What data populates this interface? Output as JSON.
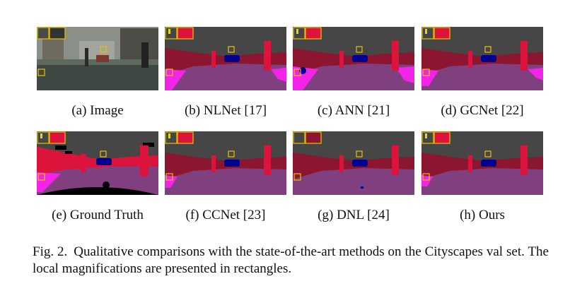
{
  "panels": [
    {
      "tag": "(a)",
      "label": "Image"
    },
    {
      "tag": "(b)",
      "label": "NLNet [17]"
    },
    {
      "tag": "(c)",
      "label": "ANN [21]"
    },
    {
      "tag": "(d)",
      "label": "GCNet [22]"
    },
    {
      "tag": "(e)",
      "label": "Ground Truth"
    },
    {
      "tag": "(f)",
      "label": "CCNet [23]"
    },
    {
      "tag": "(g)",
      "label": "DNL [24]"
    },
    {
      "tag": "(h)",
      "label": "Ours"
    }
  ],
  "caption": {
    "fig_label": "Fig. 2.",
    "text": "Qualitative comparisons with the state-of-the-art methods on the Cityscapes val set. The local magnifications are presented in rectangles."
  },
  "colors": {
    "road": "#804080",
    "sidewalk": "#f423e8",
    "building": "#464646",
    "vegetation": "#6b8e23",
    "person": "#dc143c",
    "car": "#00008e",
    "sky": "#4682b4",
    "void": "#000000",
    "traffic_sign": "#dcdc00",
    "highlight_box": "#e8c000"
  }
}
